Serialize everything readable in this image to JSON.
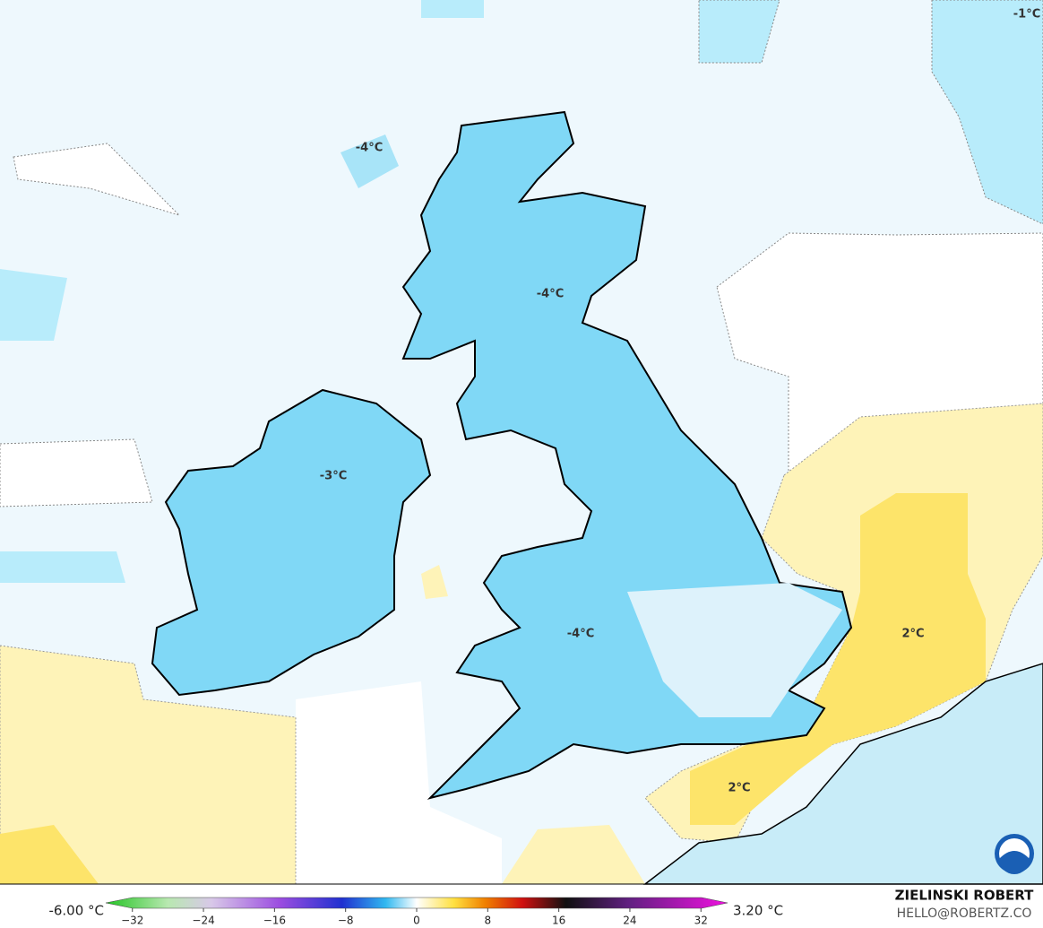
{
  "map": {
    "labels": [
      "-1°C",
      "-4°C",
      "-4°C",
      "-3°C",
      "-4°C",
      "2°C",
      "2°C"
    ]
  },
  "colorbar": {
    "min_label": "-6.00 °C",
    "max_label": "3.20 °C",
    "range": [
      -35,
      35
    ],
    "ticks": [
      {
        "value": -32,
        "label": "−32"
      },
      {
        "value": -24,
        "label": "−24"
      },
      {
        "value": -16,
        "label": "−16"
      },
      {
        "value": -8,
        "label": "−8"
      },
      0,
      8,
      16,
      24,
      32
    ]
  },
  "credits": {
    "name": "ZIELINSKI ROBERT",
    "email": "HELLO@ROBERTZ.CO"
  }
}
